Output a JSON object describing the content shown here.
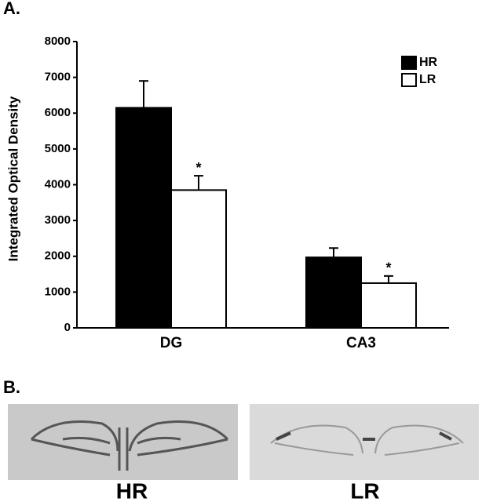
{
  "chart_data": {
    "type": "bar",
    "panel_label": "A.",
    "y_label": "Integrated Optical Density",
    "categories": [
      "DG",
      "CA3"
    ],
    "series": [
      {
        "name": "HR",
        "color": "#000000",
        "values": [
          6150,
          1970
        ],
        "errors": [
          750,
          260
        ]
      },
      {
        "name": "LR",
        "color": "#ffffff",
        "values": [
          3850,
          1250
        ],
        "errors": [
          400,
          200
        ],
        "annotations": [
          "*",
          "*"
        ]
      }
    ],
    "ylim": [
      0,
      8000
    ],
    "yticks": [
      0,
      1000,
      2000,
      3000,
      4000,
      5000,
      6000,
      7000,
      8000
    ],
    "legend": "upper right"
  },
  "figure_b": {
    "panel_label": "B.",
    "images": [
      {
        "label": "HR"
      },
      {
        "label": "LR"
      }
    ]
  }
}
